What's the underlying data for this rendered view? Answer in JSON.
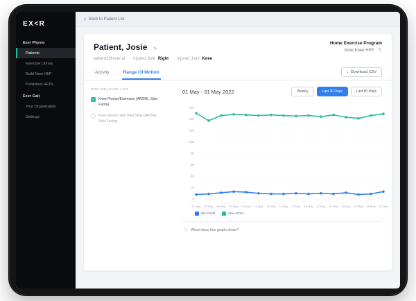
{
  "sidebar": {
    "logo": "EX<R",
    "items": [
      {
        "label": "Exer Physio",
        "type": "section"
      },
      {
        "label": "Patients",
        "active": true
      },
      {
        "label": "Exercise Library"
      },
      {
        "label": "Build New HEP"
      },
      {
        "label": "Published HEPs"
      },
      {
        "label": "Exer Gait",
        "type": "section"
      },
      {
        "label": "Your Organization"
      },
      {
        "label": "Settings"
      }
    ]
  },
  "topbar": {
    "back_label": "Back to Patient List"
  },
  "patient": {
    "name": "Patient, Josie",
    "email": "patient2@exer.ai",
    "injured_side_label": "Injured Side",
    "injured_side": "Right",
    "injured_joint_label": "Injured Joint",
    "injured_joint": "Knee"
  },
  "hep": {
    "program_label": "Home Exercise Program",
    "name": "Josie Knee HEP"
  },
  "tabs": [
    {
      "label": "Activity"
    },
    {
      "label": "Range Of Motion",
      "active": true
    }
  ],
  "toolbar": {
    "download_label": "Download CSV"
  },
  "rom_list": {
    "title": "ROM MEASURE LIST",
    "items": [
      {
        "label": "Knee Flexion/Extension (AROM), Side-Facing",
        "checked": true,
        "color": "#27bda0"
      },
      {
        "label": "Knee Flexion with Heel Slide (AROM), Side-Facing",
        "checked": false
      }
    ]
  },
  "chart": {
    "title": "01 May - 31 May 2022",
    "range_buttons": [
      {
        "label": "Weekly"
      },
      {
        "label": "Last 30 Days",
        "active": true
      },
      {
        "label": "Last 90 Days"
      }
    ],
    "footer_question": "What does this graph show?"
  },
  "chart_data": {
    "type": "line",
    "title": "01 May - 31 May 2022",
    "x": [
      "01 May",
      "03 May",
      "05 May",
      "07 May",
      "09 May",
      "11 May",
      "13 May",
      "15 May",
      "17 May",
      "19 May",
      "21 May",
      "23 May",
      "25 May",
      "27 May",
      "29 May",
      "31 May"
    ],
    "series": [
      {
        "name": "Min ROM",
        "color": "#2f80ed",
        "values": [
          8,
          9,
          11,
          13,
          12,
          10,
          9,
          9,
          10,
          9,
          10,
          9,
          11,
          8,
          9,
          13
        ]
      },
      {
        "name": "Max ROM",
        "color": "#27bda0",
        "values": [
          150,
          137,
          146,
          148,
          147,
          146,
          147,
          146,
          145,
          146,
          144,
          147,
          143,
          141,
          146,
          149
        ]
      }
    ],
    "ylim": [
      0,
      160
    ],
    "yticks": [
      0,
      20,
      40,
      60,
      80,
      100,
      120,
      140,
      160
    ],
    "grid": true,
    "legend_position": "bottom-left"
  },
  "icons": {
    "back": "‹",
    "edit": "✎",
    "download": "↓",
    "check": "✓",
    "info": "ⓘ"
  },
  "colors": {
    "accent_blue": "#2f80ed",
    "accent_teal": "#27bda0",
    "sidebar_bg": "#0a0b0d",
    "screen_bg": "#f3f4f6"
  }
}
